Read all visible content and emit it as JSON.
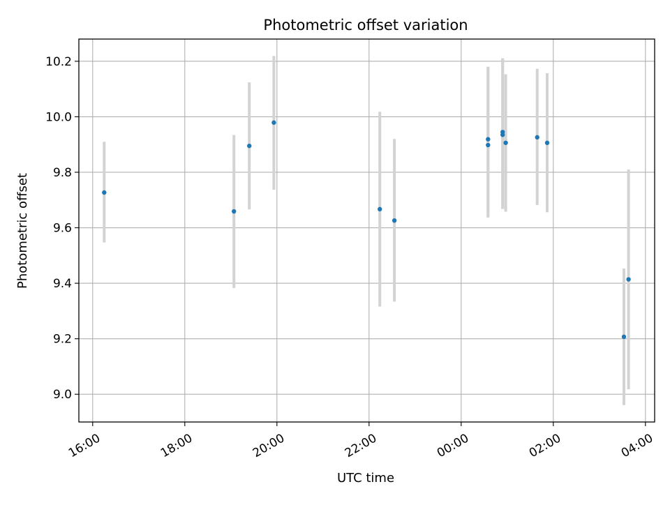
{
  "chart_data": {
    "type": "scatter",
    "title": "Photometric offset variation",
    "xlabel": "UTC time",
    "ylabel": "Photometric offset",
    "x_tick_labels": [
      "16:00",
      "18:00",
      "20:00",
      "22:00",
      "00:00",
      "02:00",
      "04:00"
    ],
    "x_ticks_hours": [
      0,
      2,
      4,
      6,
      8,
      10,
      12
    ],
    "y_ticks": [
      9.0,
      9.2,
      9.4,
      9.6,
      9.8,
      10.0,
      10.2
    ],
    "y_tick_labels": [
      "9.0",
      "9.2",
      "9.4",
      "9.6",
      "9.8",
      "10.0",
      "10.2"
    ],
    "xlim_hours": [
      -0.3,
      12.2
    ],
    "ylim": [
      8.9,
      10.28
    ],
    "grid": true,
    "point_color": "#1f77b4",
    "errorbar_color": "#d3d3d3",
    "points": [
      {
        "time": "16:15",
        "y": 9.727,
        "low": 9.547,
        "high": 9.91
      },
      {
        "time": "19:04",
        "y": 9.659,
        "low": 9.383,
        "high": 9.934
      },
      {
        "time": "19:24",
        "y": 9.895,
        "low": 9.666,
        "high": 10.124
      },
      {
        "time": "19:56",
        "y": 9.979,
        "low": 9.737,
        "high": 10.219
      },
      {
        "time": "22:14",
        "y": 9.667,
        "low": 9.316,
        "high": 10.018
      },
      {
        "time": "22:33",
        "y": 9.626,
        "low": 9.334,
        "high": 9.92
      },
      {
        "time": "00:35",
        "y": 9.919,
        "low": 9.637,
        "high": 10.18
      },
      {
        "time": "00:35",
        "y": 9.898,
        "low": 9.637,
        "high": 10.18
      },
      {
        "time": "00:54",
        "y": 9.945,
        "low": 9.668,
        "high": 10.211
      },
      {
        "time": "00:54",
        "y": 9.935,
        "low": 9.668,
        "high": 10.211
      },
      {
        "time": "00:58",
        "y": 9.906,
        "low": 9.658,
        "high": 10.153
      },
      {
        "time": "01:39",
        "y": 9.926,
        "low": 9.682,
        "high": 10.173
      },
      {
        "time": "01:52",
        "y": 9.906,
        "low": 9.656,
        "high": 10.157
      },
      {
        "time": "03:32",
        "y": 9.207,
        "low": 8.961,
        "high": 9.453
      },
      {
        "time": "03:38",
        "y": 9.414,
        "low": 9.018,
        "high": 9.81
      }
    ]
  }
}
